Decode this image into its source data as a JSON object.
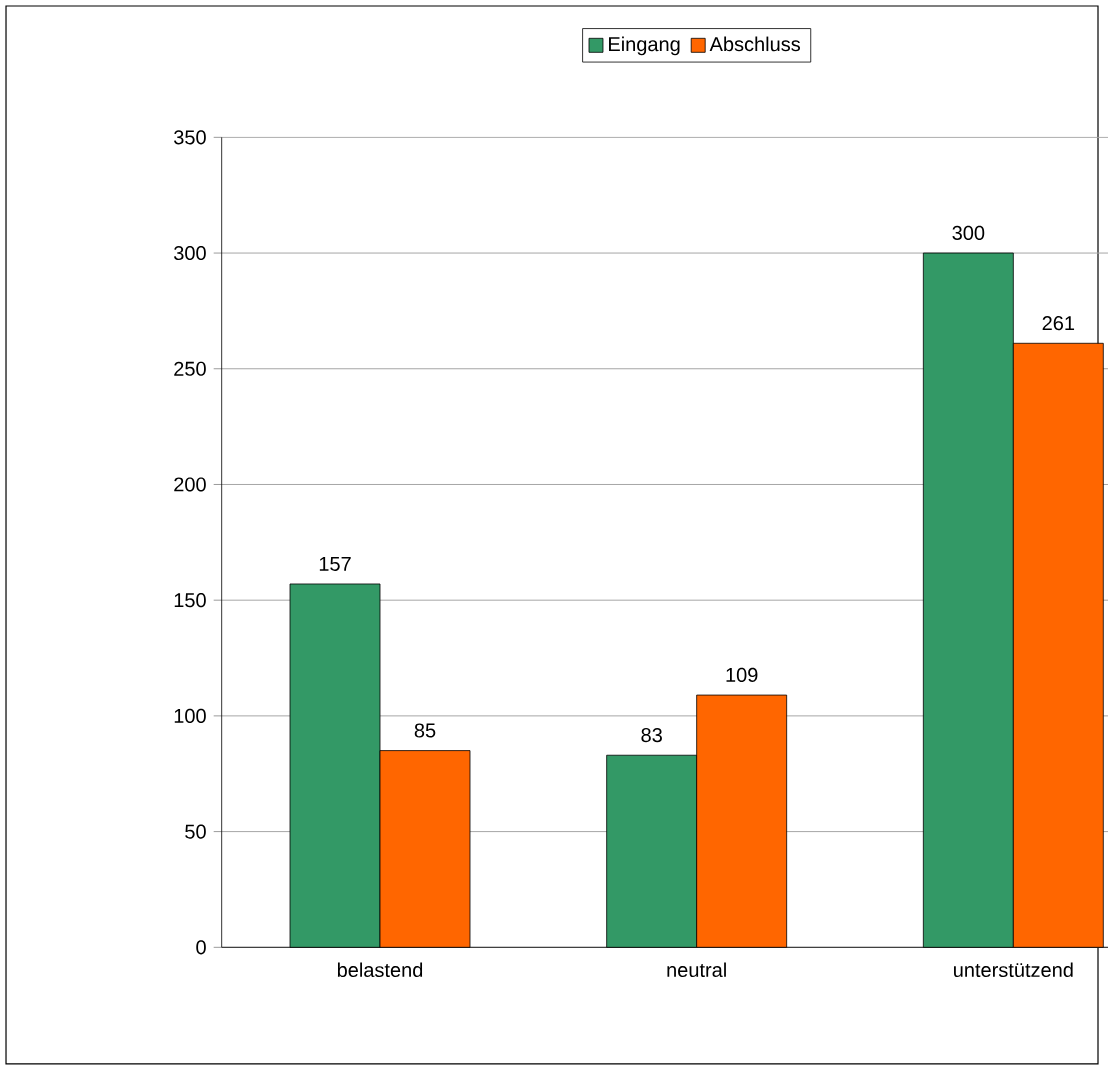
{
  "chart_data": {
    "type": "bar",
    "categories": [
      "belastend",
      "neutral",
      "unterstützend"
    ],
    "series": [
      {
        "name": "Eingang",
        "color": "#339966",
        "values": [
          157,
          83,
          300
        ]
      },
      {
        "name": "Abschluss",
        "color": "#ff6600",
        "values": [
          85,
          109,
          261
        ]
      }
    ],
    "ylim": [
      0,
      350
    ],
    "yticks": [
      0,
      50,
      100,
      150,
      200,
      250,
      300,
      350
    ],
    "grid": "y",
    "legend": "top",
    "data_labels": true
  }
}
